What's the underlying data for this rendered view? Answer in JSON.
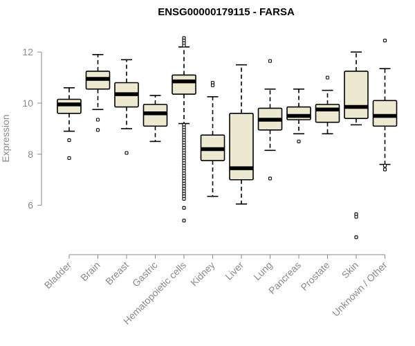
{
  "chart_data": {
    "type": "boxplot",
    "title": "ENSG00000179115 - FARSA",
    "xlabel": "",
    "ylabel": "Expression",
    "ylim": [
      4.5,
      12.9
    ],
    "yticks": [
      6,
      8,
      10,
      12
    ],
    "box_color": "#ede8d0",
    "categories": [
      "Bladder",
      "Brain",
      "Breast",
      "Gastric",
      "Hematopoietic cells",
      "Kidney",
      "Liver",
      "Lung",
      "Pancreas",
      "Prostate",
      "Skin",
      "Unknown / Other"
    ],
    "boxes": [
      {
        "category": "Bladder",
        "whisker_low": 8.9,
        "q1": 9.6,
        "median": 9.95,
        "q3": 10.15,
        "whisker_high": 10.6,
        "outliers": [
          8.55,
          7.85
        ]
      },
      {
        "category": "Brain",
        "whisker_low": 9.75,
        "q1": 10.55,
        "median": 10.95,
        "q3": 11.25,
        "whisker_high": 11.9,
        "outliers": [
          9.35,
          8.95
        ]
      },
      {
        "category": "Breast",
        "whisker_low": 9.0,
        "q1": 9.85,
        "median": 10.35,
        "q3": 10.8,
        "whisker_high": 11.7,
        "outliers": [
          8.05
        ]
      },
      {
        "category": "Gastric",
        "whisker_low": 8.5,
        "q1": 9.1,
        "median": 9.6,
        "q3": 9.95,
        "whisker_high": 10.3,
        "outliers": []
      },
      {
        "category": "Hematopoietic cells",
        "whisker_low": 9.2,
        "q1": 10.35,
        "median": 10.85,
        "q3": 11.1,
        "whisker_high": 12.2,
        "outliers": [
          12.55,
          12.45,
          12.35,
          12.25,
          9.15,
          9.05,
          8.95,
          8.85,
          8.75,
          8.65,
          8.55,
          8.45,
          8.35,
          8.25,
          8.15,
          8.05,
          7.95,
          7.85,
          7.75,
          7.65,
          7.55,
          7.45,
          7.35,
          7.25,
          7.15,
          7.05,
          6.95,
          6.85,
          6.75,
          6.65,
          6.55,
          6.45,
          6.35,
          6.25,
          5.9,
          5.4
        ]
      },
      {
        "category": "Kidney",
        "whisker_low": 6.35,
        "q1": 7.75,
        "median": 8.2,
        "q3": 8.75,
        "whisker_high": 10.25,
        "outliers": [
          10.8,
          10.7
        ]
      },
      {
        "category": "Liver",
        "whisker_low": 6.05,
        "q1": 7.0,
        "median": 7.45,
        "q3": 9.6,
        "whisker_high": 11.5,
        "outliers": []
      },
      {
        "category": "Lung",
        "whisker_low": 8.15,
        "q1": 8.95,
        "median": 9.35,
        "q3": 9.8,
        "whisker_high": 10.55,
        "outliers": [
          11.65,
          7.05
        ]
      },
      {
        "category": "Pancreas",
        "whisker_low": 8.8,
        "q1": 9.35,
        "median": 9.5,
        "q3": 9.85,
        "whisker_high": 10.55,
        "outliers": [
          8.5
        ]
      },
      {
        "category": "Prostate",
        "whisker_low": 8.8,
        "q1": 9.25,
        "median": 9.75,
        "q3": 9.95,
        "whisker_high": 10.5,
        "outliers": [
          11.0
        ]
      },
      {
        "category": "Skin",
        "whisker_low": 9.15,
        "q1": 9.4,
        "median": 9.85,
        "q3": 11.25,
        "whisker_high": 12.0,
        "outliers": [
          5.65,
          5.55,
          4.75
        ]
      },
      {
        "category": "Unknown / Other",
        "whisker_low": 7.6,
        "q1": 9.1,
        "median": 9.5,
        "q3": 10.1,
        "whisker_high": 11.35,
        "outliers": [
          12.45,
          7.55,
          7.4
        ]
      }
    ]
  }
}
